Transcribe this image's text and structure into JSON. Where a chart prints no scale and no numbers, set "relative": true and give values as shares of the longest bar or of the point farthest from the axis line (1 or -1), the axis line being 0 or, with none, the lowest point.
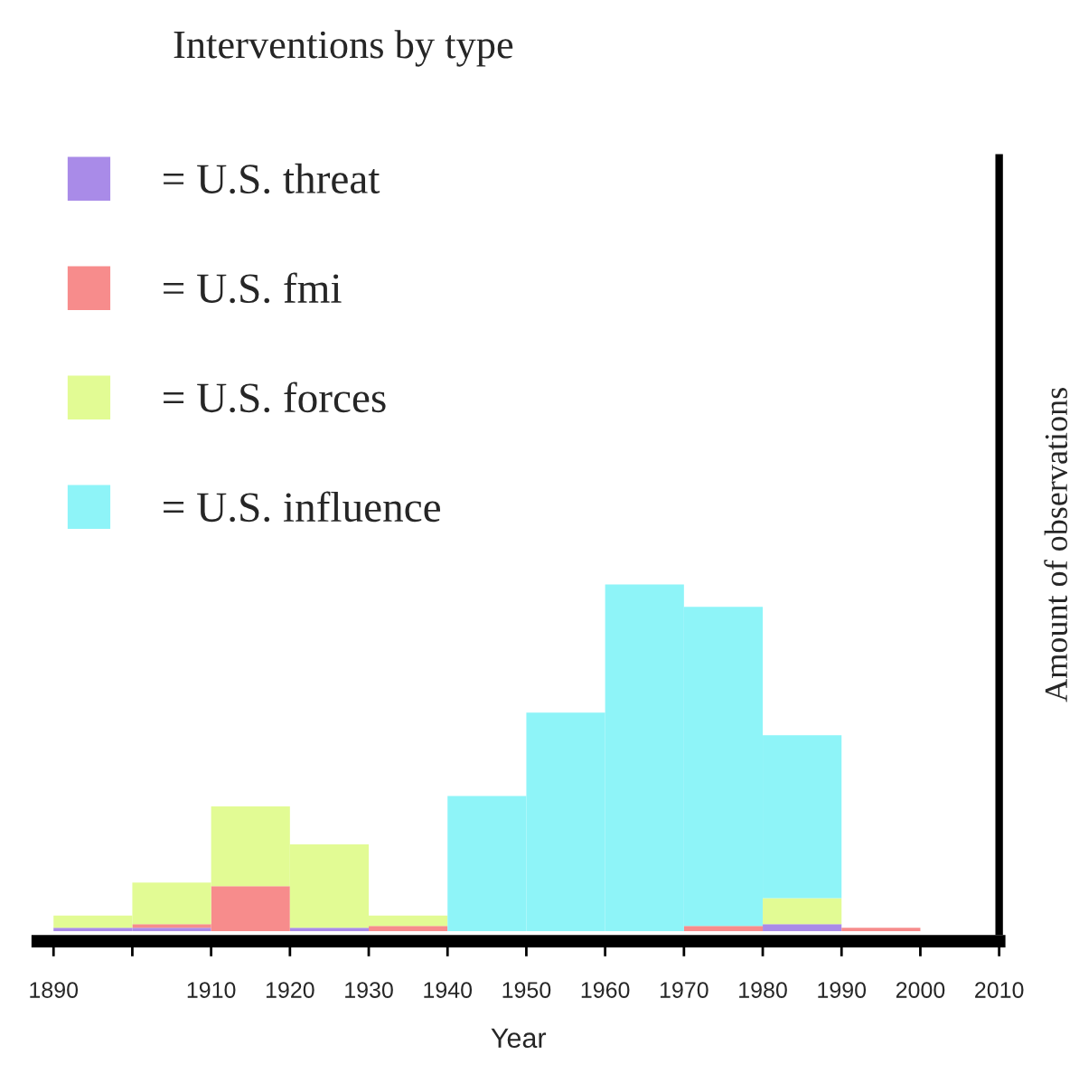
{
  "chart_data": {
    "type": "bar",
    "title": "Interventions by type",
    "xlabel": "Year",
    "ylabel": "Amount of observations",
    "relative": true,
    "stacked": true,
    "x": [
      1895,
      1905,
      1915,
      1925,
      1935,
      1945,
      1955,
      1965,
      1975,
      1985,
      1995
    ],
    "series": [
      {
        "name": "= U.S. threat",
        "color": "#a98be8",
        "values": [
          0.01,
          0.01,
          null,
          0.01,
          null,
          null,
          null,
          null,
          null,
          0.02,
          null
        ]
      },
      {
        "name": "= U.S. fmi",
        "color": "#f78c8c",
        "values": [
          null,
          0.01,
          0.13,
          null,
          0.015,
          null,
          null,
          null,
          0.015,
          null,
          0.01
        ]
      },
      {
        "name": "= U.S. forces",
        "color": "#e2fb94",
        "values": [
          0.035,
          0.12,
          0.23,
          0.24,
          0.03,
          null,
          null,
          null,
          null,
          0.075,
          null
        ]
      },
      {
        "name": "= U.S. influence",
        "color": "#8ef4f8",
        "values": [
          null,
          null,
          null,
          null,
          null,
          0.39,
          0.63,
          1,
          0.92,
          0.47,
          null
        ]
      }
    ],
    "xlim": [
      1888,
      2010
    ],
    "xticks": [
      1890,
      {
        "value": 1900,
        "label": null
      },
      1910,
      1920,
      1930,
      1940,
      1950,
      1960,
      1970,
      1980,
      1990,
      2000,
      2010
    ],
    "legend": "top left",
    "grid": false
  }
}
